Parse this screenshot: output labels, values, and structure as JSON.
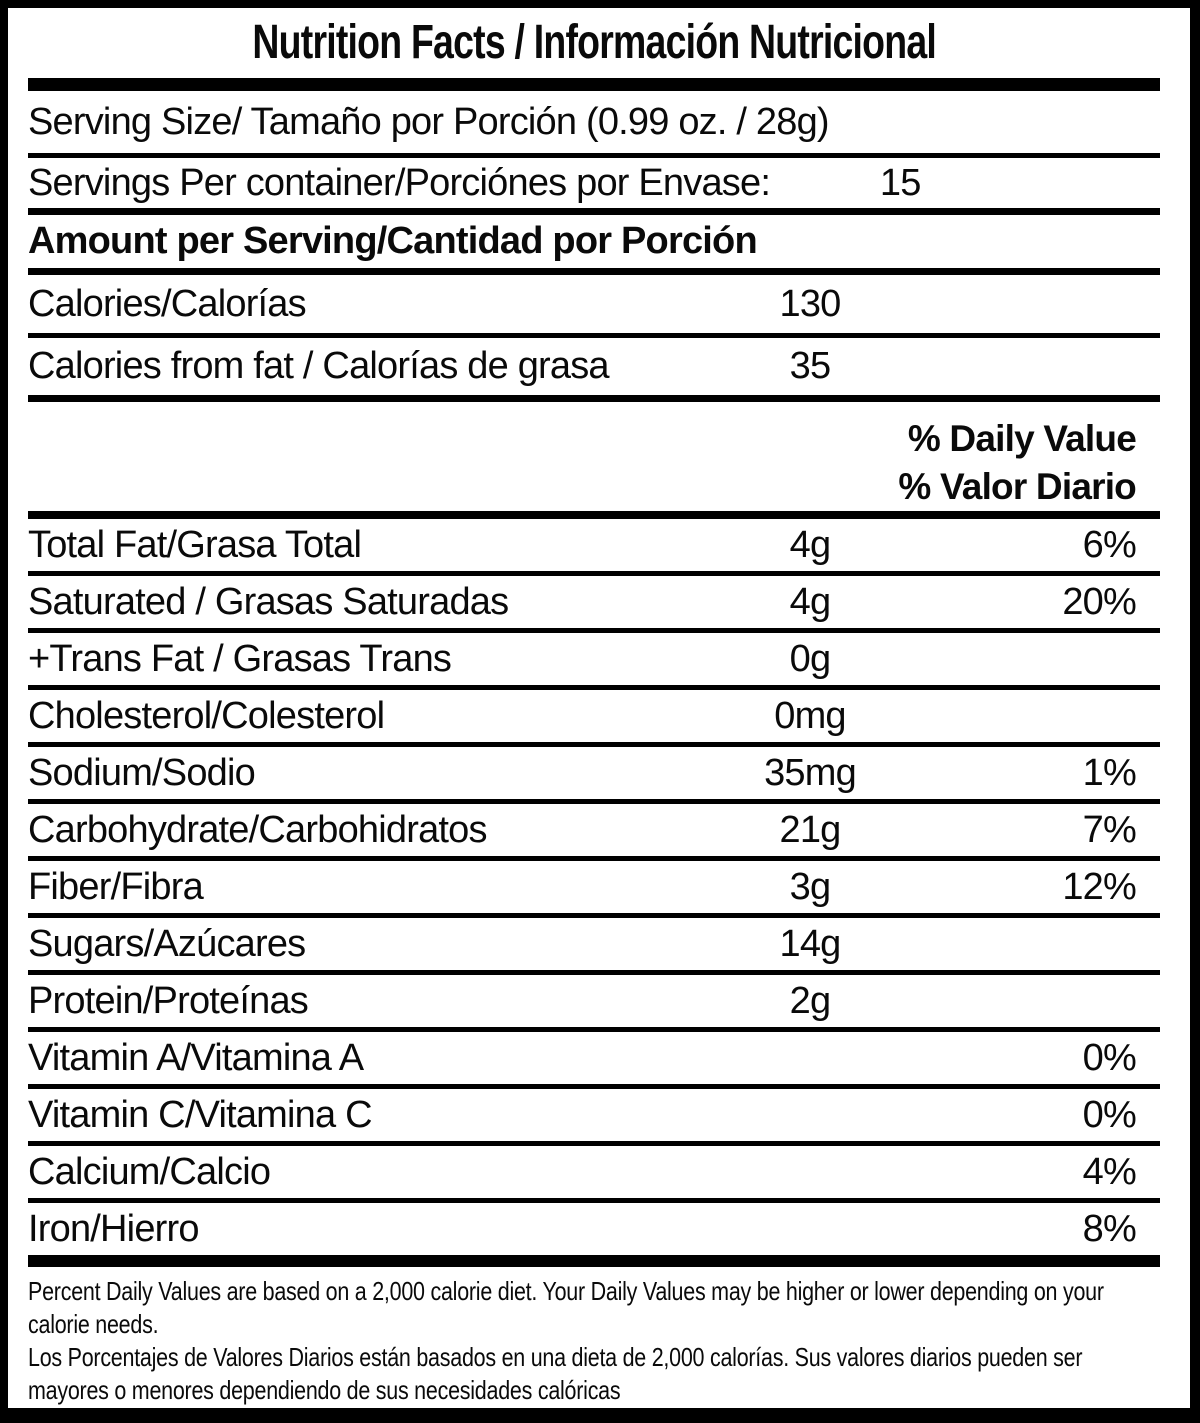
{
  "colors": {
    "background": "#ffffff",
    "text": "#0a0a0a",
    "border": "#000000"
  },
  "label": {
    "title": "Nutrition Facts / Información Nutricional",
    "serving_size": "Serving Size/ Tamaño por Porción  (0.99 oz. / 28g)",
    "servings_per_container": {
      "label": "Servings Per container/Porciónes por Envase:",
      "value": "15"
    },
    "amount_per_serving_header": "Amount per Serving/Cantidad por Porción",
    "calories": {
      "label": "Calories/Calorías",
      "value": "130"
    },
    "calories_from_fat": {
      "label": "Calories from fat / Calorías de grasa",
      "value": "35"
    },
    "daily_value_header": {
      "en": "% Daily Value",
      "es": "% Valor Diario"
    },
    "nutrients": [
      {
        "label": "Total Fat/Grasa Total",
        "amount": "4g",
        "dv": "6%"
      },
      {
        "label": "Saturated / Grasas Saturadas",
        "amount": "4g",
        "dv": "20%"
      },
      {
        "label": "+Trans Fat / Grasas Trans",
        "amount": "0g",
        "dv": ""
      },
      {
        "label": "Cholesterol/Colesterol",
        "amount": "0mg",
        "dv": ""
      },
      {
        "label": "Sodium/Sodio",
        "amount": "35mg",
        "dv": "1%"
      },
      {
        "label": "Carbohydrate/Carbohidratos",
        "amount": "21g",
        "dv": "7%"
      },
      {
        "label": "Fiber/Fibra",
        "amount": "3g",
        "dv": "12%"
      },
      {
        "label": "Sugars/Azúcares",
        "amount": "14g",
        "dv": ""
      },
      {
        "label": "Protein/Proteínas",
        "amount": "2g",
        "dv": ""
      },
      {
        "label": "Vitamin A/Vitamina A",
        "amount": "",
        "dv": "0%"
      },
      {
        "label": "Vitamin C/Vitamina C",
        "amount": "",
        "dv": "0%"
      },
      {
        "label": "Calcium/Calcio",
        "amount": "",
        "dv": "4%"
      },
      {
        "label": "Iron/Hierro",
        "amount": "",
        "dv": "8%"
      }
    ],
    "footnotes": {
      "en": "Percent Daily Values are based on a 2,000 calorie diet. Your Daily Values may be higher or lower depending on your calorie needs.",
      "es": "Los Porcentajes de Valores Diarios están basados en una dieta de 2,000 calorías. Sus valores diarios pueden ser mayores o menores dependiendo de sus necesidades calóricas"
    }
  }
}
